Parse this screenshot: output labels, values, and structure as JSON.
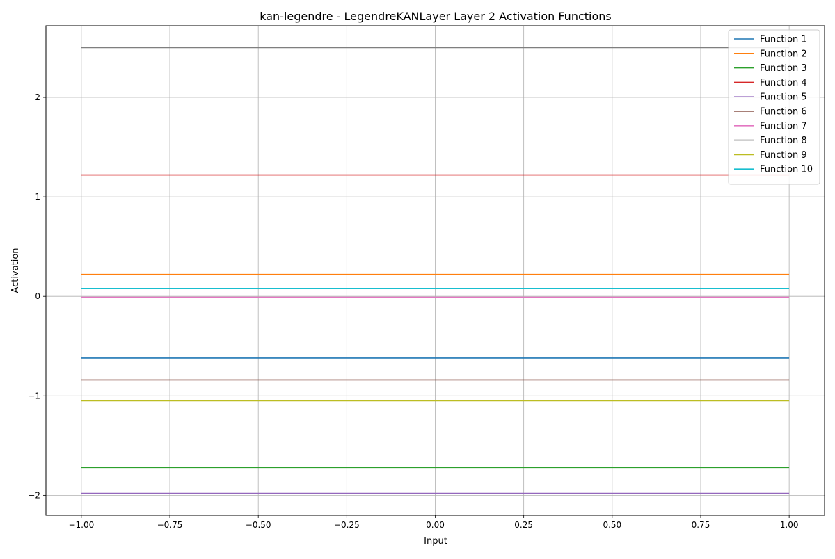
{
  "chart_data": {
    "type": "line",
    "title": "kan-legendre - LegendreKANLayer Layer 2 Activation Functions",
    "xlabel": "Input",
    "ylabel": "Activation",
    "xlim": [
      -1.1,
      1.1
    ],
    "ylim": [
      -2.2,
      2.72
    ],
    "xticks": [
      -1.0,
      -0.75,
      -0.5,
      -0.25,
      0.0,
      0.25,
      0.5,
      0.75,
      1.0
    ],
    "xtick_labels": [
      "−1.00",
      "−0.75",
      "−0.50",
      "−0.25",
      "0.00",
      "0.25",
      "0.50",
      "0.75",
      "1.00"
    ],
    "yticks": [
      -2,
      -1,
      0,
      1,
      2
    ],
    "ytick_labels": [
      "−2",
      "−1",
      "0",
      "1",
      "2"
    ],
    "grid": true,
    "legend_position": "top-right",
    "x": [
      -1.0,
      1.0
    ],
    "series": [
      {
        "name": "Function 1",
        "color": "#1f77b4",
        "values": [
          -0.62,
          -0.62
        ]
      },
      {
        "name": "Function 2",
        "color": "#ff7f0e",
        "values": [
          0.22,
          0.22
        ]
      },
      {
        "name": "Function 3",
        "color": "#2ca02c",
        "values": [
          -1.72,
          -1.72
        ]
      },
      {
        "name": "Function 4",
        "color": "#d62728",
        "values": [
          1.22,
          1.22
        ]
      },
      {
        "name": "Function 5",
        "color": "#9467bd",
        "values": [
          -1.98,
          -1.98
        ]
      },
      {
        "name": "Function 6",
        "color": "#8c564b",
        "values": [
          -0.84,
          -0.84
        ]
      },
      {
        "name": "Function 7",
        "color": "#e377c2",
        "values": [
          -0.01,
          -0.01
        ]
      },
      {
        "name": "Function 8",
        "color": "#7f7f7f",
        "values": [
          2.5,
          2.5
        ]
      },
      {
        "name": "Function 9",
        "color": "#bcbd22",
        "values": [
          -1.05,
          -1.05
        ]
      },
      {
        "name": "Function 10",
        "color": "#17becf",
        "values": [
          0.08,
          0.08
        ]
      }
    ]
  }
}
